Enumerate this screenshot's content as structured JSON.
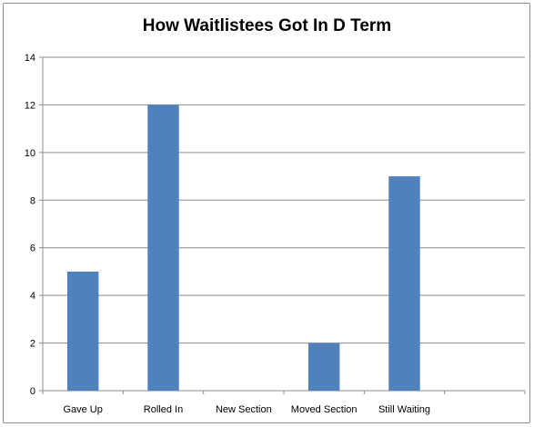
{
  "chart_data": {
    "type": "bar",
    "title": "How Waitlistees Got In D Term",
    "categories": [
      "Gave Up",
      "Rolled In",
      "New Section",
      "Moved Section",
      "Still Waiting"
    ],
    "values": [
      5,
      12,
      0,
      2,
      9
    ],
    "xlabel": "",
    "ylabel": "",
    "ylim": [
      0,
      14
    ],
    "yticks": [
      "0",
      "2",
      "4",
      "6",
      "8",
      "10",
      "12",
      "14"
    ],
    "grid": true,
    "legend": "none",
    "bar_color": "#4f81bd",
    "grid_color": "#8c8c8c"
  }
}
